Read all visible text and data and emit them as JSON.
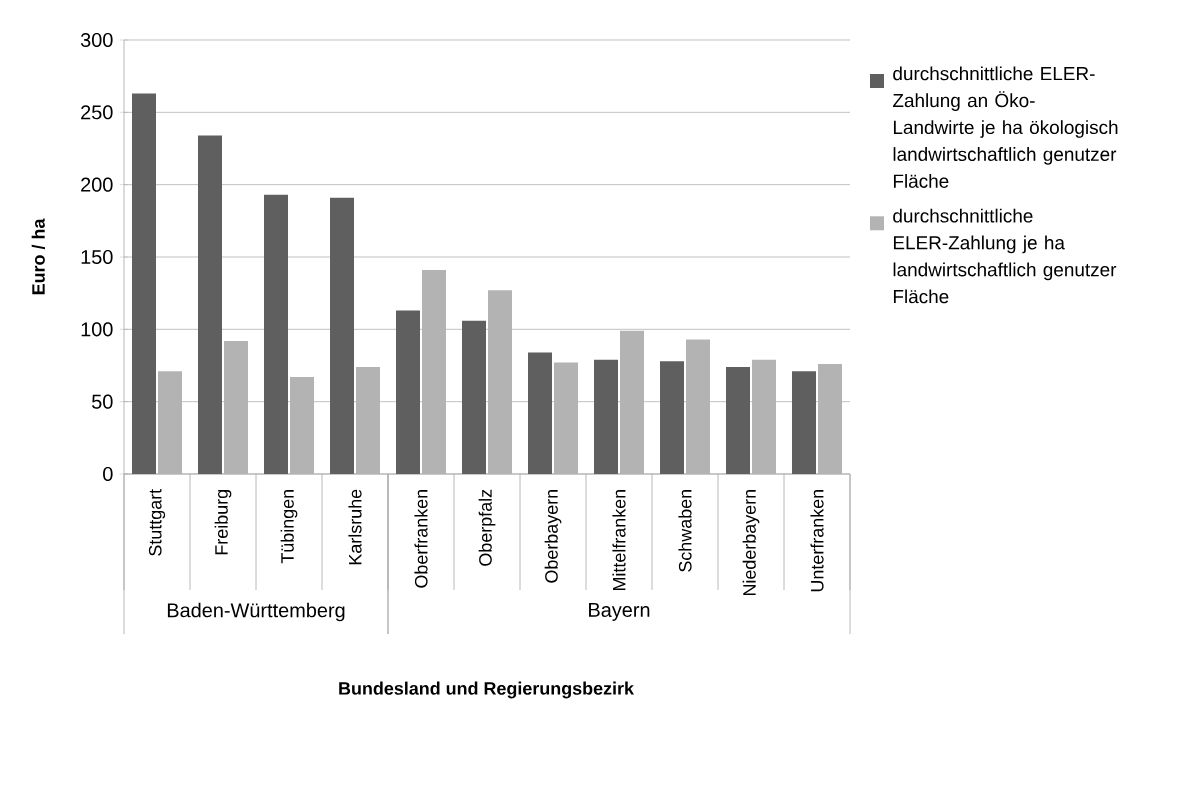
{
  "chart_data": {
    "type": "bar",
    "categories": [
      "Stuttgart",
      "Freiburg",
      "Tübingen",
      "Karlsruhe",
      "Oberfranken",
      "Oberpfalz",
      "Oberbayern",
      "Mittelfranken",
      "Schwaben",
      "Niederbayern",
      "Unterfranken"
    ],
    "series": [
      {
        "name": "durchschnittliche ELER-Zahlung an Öko-Landwirte je ha ökologisch landwirtschaftlich genutzer Fläche",
        "color": "#5f5f5f",
        "values": [
          263,
          234,
          193,
          191,
          113,
          106,
          84,
          79,
          78,
          74,
          71
        ]
      },
      {
        "name": "durchschnittliche ELER-Zahlung je ha landwirtschaftlich genutzer Fläche",
        "color": "#b3b3b3",
        "values": [
          71,
          92,
          67,
          74,
          141,
          127,
          77,
          99,
          93,
          79,
          76
        ]
      }
    ],
    "annotations": [
      "Baden-Württemberg",
      "Bayern"
    ],
    "xlabel": "Bundesland und Regierungsbezirk",
    "ylabel": "Euro / ha",
    "ylim": [
      0,
      300
    ],
    "yticks": [
      0,
      50,
      100,
      150,
      200,
      250,
      300
    ],
    "grid": "y",
    "legend": "right"
  }
}
